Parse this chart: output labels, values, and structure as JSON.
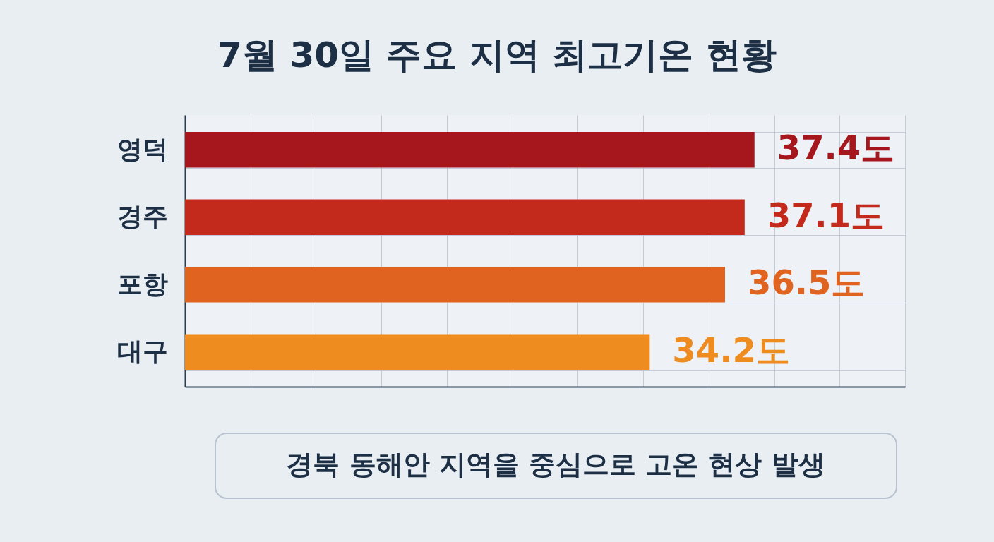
{
  "chart_data": {
    "type": "bar",
    "orientation": "horizontal",
    "title": "7월 30일 주요 지역 최고기온 현황",
    "categories": [
      "영덕",
      "경주",
      "포항",
      "대구"
    ],
    "values": [
      37.4,
      37.1,
      36.5,
      34.2
    ],
    "colors": [
      "#a5161d",
      "#c42a1c",
      "#e0641f",
      "#ef8c1f"
    ],
    "value_labels": [
      "37.4도",
      "37.1도",
      "36.5도",
      "34.2도"
    ],
    "xlim": [
      20,
      42
    ],
    "xticks": [
      {
        "value": 20,
        "label": null
      },
      {
        "value": 22,
        "label": null
      },
      {
        "value": 24,
        "label": null
      },
      {
        "value": 26,
        "label": null
      },
      {
        "value": 28,
        "label": null
      },
      {
        "value": 30,
        "label": null
      },
      {
        "value": 32,
        "label": null
      },
      {
        "value": 34,
        "label": null
      },
      {
        "value": 36,
        "label": null
      },
      {
        "value": 38,
        "label": null
      },
      {
        "value": 40,
        "label": null
      },
      {
        "value": 42,
        "label": null
      }
    ],
    "tick_labels": "y",
    "grid": true,
    "annotations": [
      "경북 동해안 지역을 중심으로 고온 현상 발생"
    ]
  }
}
